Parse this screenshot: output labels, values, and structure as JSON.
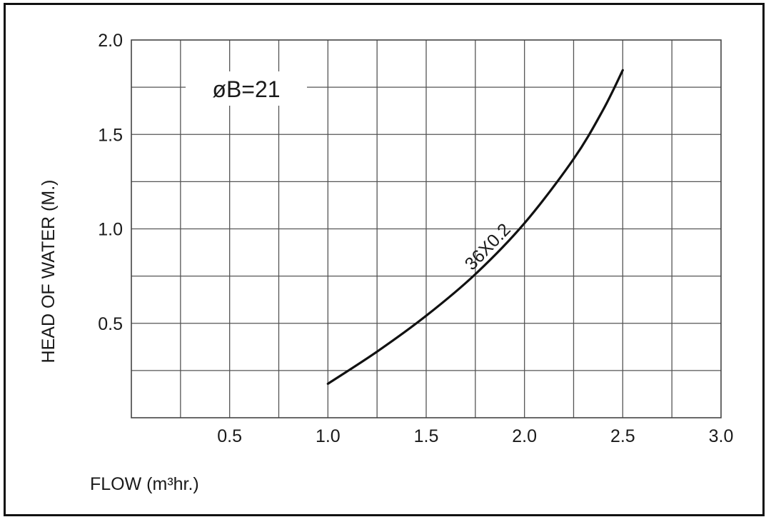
{
  "chart_data": {
    "type": "line",
    "xlabel": "FLOW (m³hr.)",
    "ylabel": "HEAD OF WATER (M.)",
    "xlim": [
      0,
      3.0
    ],
    "ylim": [
      0,
      2.0
    ],
    "x_ticks": [
      0.5,
      1.0,
      1.5,
      2.0,
      2.5,
      3.0
    ],
    "x_tick_labels": [
      "0.5",
      "1.0",
      "1.5",
      "2.0",
      "2.5",
      "3.0"
    ],
    "y_ticks": [
      0.5,
      1.0,
      1.5,
      2.0
    ],
    "y_tick_labels": [
      "0.5",
      "1.0",
      "1.5",
      "2.0"
    ],
    "grid": true,
    "grid_step_x": 0.25,
    "grid_step_y": 0.25,
    "annotation": "øB=21",
    "series": [
      {
        "name": "36X0.2",
        "x": [
          1.0,
          1.25,
          1.5,
          1.75,
          2.0,
          2.25,
          2.4,
          2.5
        ],
        "y": [
          0.18,
          0.35,
          0.54,
          0.76,
          1.03,
          1.37,
          1.63,
          1.84
        ]
      }
    ],
    "line_color": "#111111"
  }
}
